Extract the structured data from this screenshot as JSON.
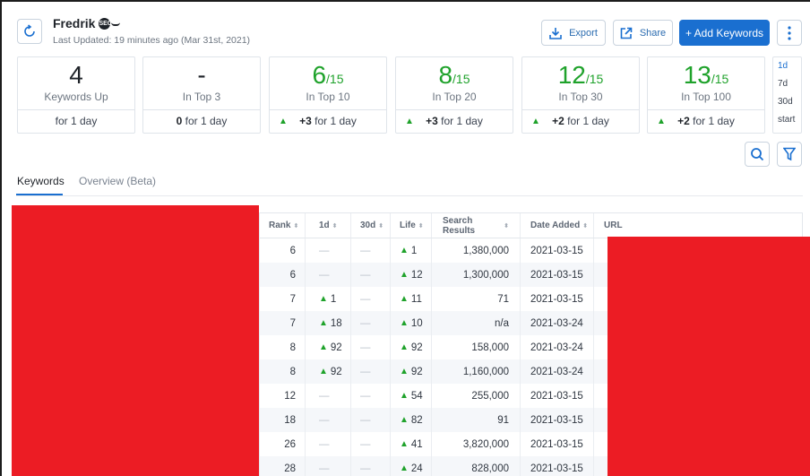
{
  "header": {
    "project_name": "Fredrik",
    "project_icon_text": "SEO",
    "last_updated": "Last Updated: 19 minutes ago (Mar 31st, 2021)",
    "export_label": "Export",
    "share_label": "Share",
    "add_keywords_label": "+ Add Keywords"
  },
  "stats": [
    {
      "value": "4",
      "of": "",
      "label": "Keywords Up",
      "change_bold": "",
      "change_text": "for 1 day",
      "up": false,
      "green": false
    },
    {
      "value": "-",
      "of": "",
      "label": "In Top 3",
      "change_bold": "0",
      "change_text": " for 1 day",
      "up": false,
      "green": false
    },
    {
      "value": "6",
      "of": "/15",
      "label": "In Top 10",
      "change_bold": "+3",
      "change_text": " for 1 day",
      "up": true,
      "green": true
    },
    {
      "value": "8",
      "of": "/15",
      "label": "In Top 20",
      "change_bold": "+3",
      "change_text": " for 1 day",
      "up": true,
      "green": true
    },
    {
      "value": "12",
      "of": "/15",
      "label": "In Top 30",
      "change_bold": "+2",
      "change_text": " for 1 day",
      "up": true,
      "green": true
    },
    {
      "value": "13",
      "of": "/15",
      "label": "In Top 100",
      "change_bold": "+2",
      "change_text": " for 1 day",
      "up": true,
      "green": true
    }
  ],
  "periods": [
    "1d",
    "7d",
    "30d",
    "start"
  ],
  "active_period": "1d",
  "tabs": [
    "Keywords",
    "Overview (Beta)"
  ],
  "table": {
    "headers": [
      "Rank",
      "1d",
      "30d",
      "Life",
      "Search Results",
      "Date Added",
      "URL"
    ],
    "rows": [
      {
        "rank": "6",
        "d1": "",
        "d30": "",
        "life": "1",
        "sr": "1,380,000",
        "date": "2021-03-15"
      },
      {
        "rank": "6",
        "d1": "",
        "d30": "",
        "life": "12",
        "sr": "1,300,000",
        "date": "2021-03-15"
      },
      {
        "rank": "7",
        "d1": "1",
        "d30": "",
        "life": "11",
        "sr": "71",
        "date": "2021-03-15"
      },
      {
        "rank": "7",
        "d1": "18",
        "d30": "",
        "life": "10",
        "sr": "n/a",
        "date": "2021-03-24"
      },
      {
        "rank": "8",
        "d1": "92",
        "d30": "",
        "life": "92",
        "sr": "158,000",
        "date": "2021-03-24"
      },
      {
        "rank": "8",
        "d1": "92",
        "d30": "",
        "life": "92",
        "sr": "1,160,000",
        "date": "2021-03-24"
      },
      {
        "rank": "12",
        "d1": "",
        "d30": "",
        "life": "54",
        "sr": "255,000",
        "date": "2021-03-15"
      },
      {
        "rank": "18",
        "d1": "",
        "d30": "",
        "life": "82",
        "sr": "91",
        "date": "2021-03-15"
      },
      {
        "rank": "26",
        "d1": "",
        "d30": "",
        "life": "41",
        "sr": "3,820,000",
        "date": "2021-03-15"
      },
      {
        "rank": "28",
        "d1": "",
        "d30": "",
        "life": "24",
        "sr": "828,000",
        "date": "2021-03-15"
      }
    ]
  },
  "colors": {
    "accent": "#1a6fd0",
    "up": "#1fa22b",
    "redaction": "#ec1c24"
  }
}
